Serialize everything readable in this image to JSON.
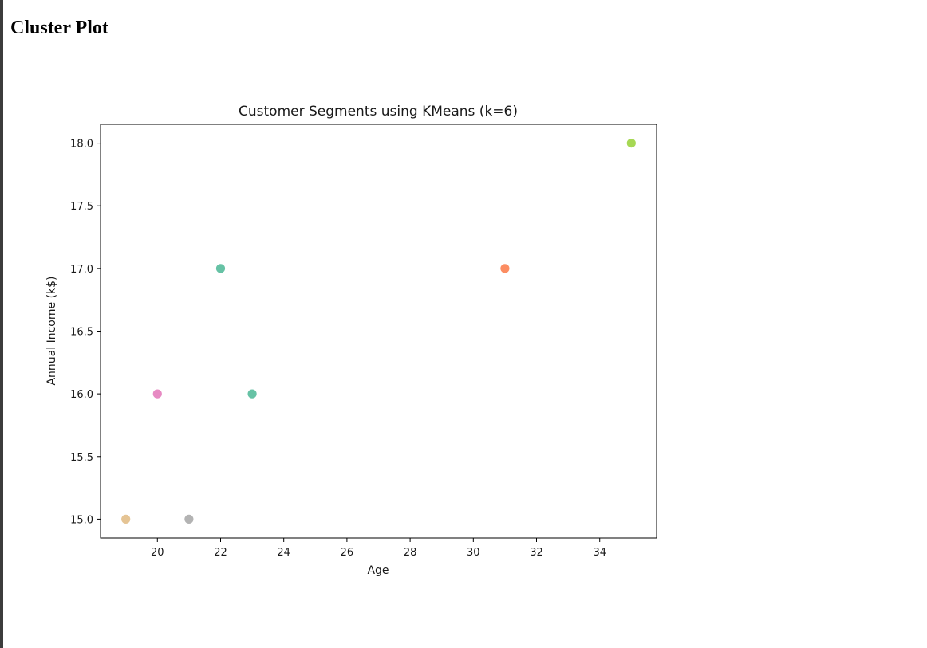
{
  "page": {
    "heading": "Cluster Plot"
  },
  "colors": {
    "frame": "#3c3c3c",
    "axes": "#000000"
  },
  "chart_data": {
    "type": "scatter",
    "title": "Customer Segments using KMeans (k=6)",
    "xlabel": "Age",
    "ylabel": "Annual Income (k$)",
    "xlim": [
      18.2,
      35.8
    ],
    "ylim": [
      14.85,
      18.15
    ],
    "xticks": [
      20,
      22,
      24,
      26,
      28,
      30,
      32,
      34
    ],
    "yticks": [
      15.0,
      15.5,
      16.0,
      16.5,
      17.0,
      17.5,
      18.0
    ],
    "ytick_labels": [
      "15.0",
      "15.5",
      "16.0",
      "16.5",
      "17.0",
      "17.5",
      "18.0"
    ],
    "grid": false,
    "legend": false,
    "points": [
      {
        "x": 19,
        "y": 15,
        "color": "#e5c494"
      },
      {
        "x": 21,
        "y": 15,
        "color": "#b3b3b3"
      },
      {
        "x": 20,
        "y": 16,
        "color": "#e78ac3"
      },
      {
        "x": 23,
        "y": 16,
        "color": "#66c2a5"
      },
      {
        "x": 22,
        "y": 17,
        "color": "#66c2a5"
      },
      {
        "x": 31,
        "y": 17,
        "color": "#fc8d62"
      },
      {
        "x": 35,
        "y": 18,
        "color": "#a6d854"
      }
    ]
  }
}
